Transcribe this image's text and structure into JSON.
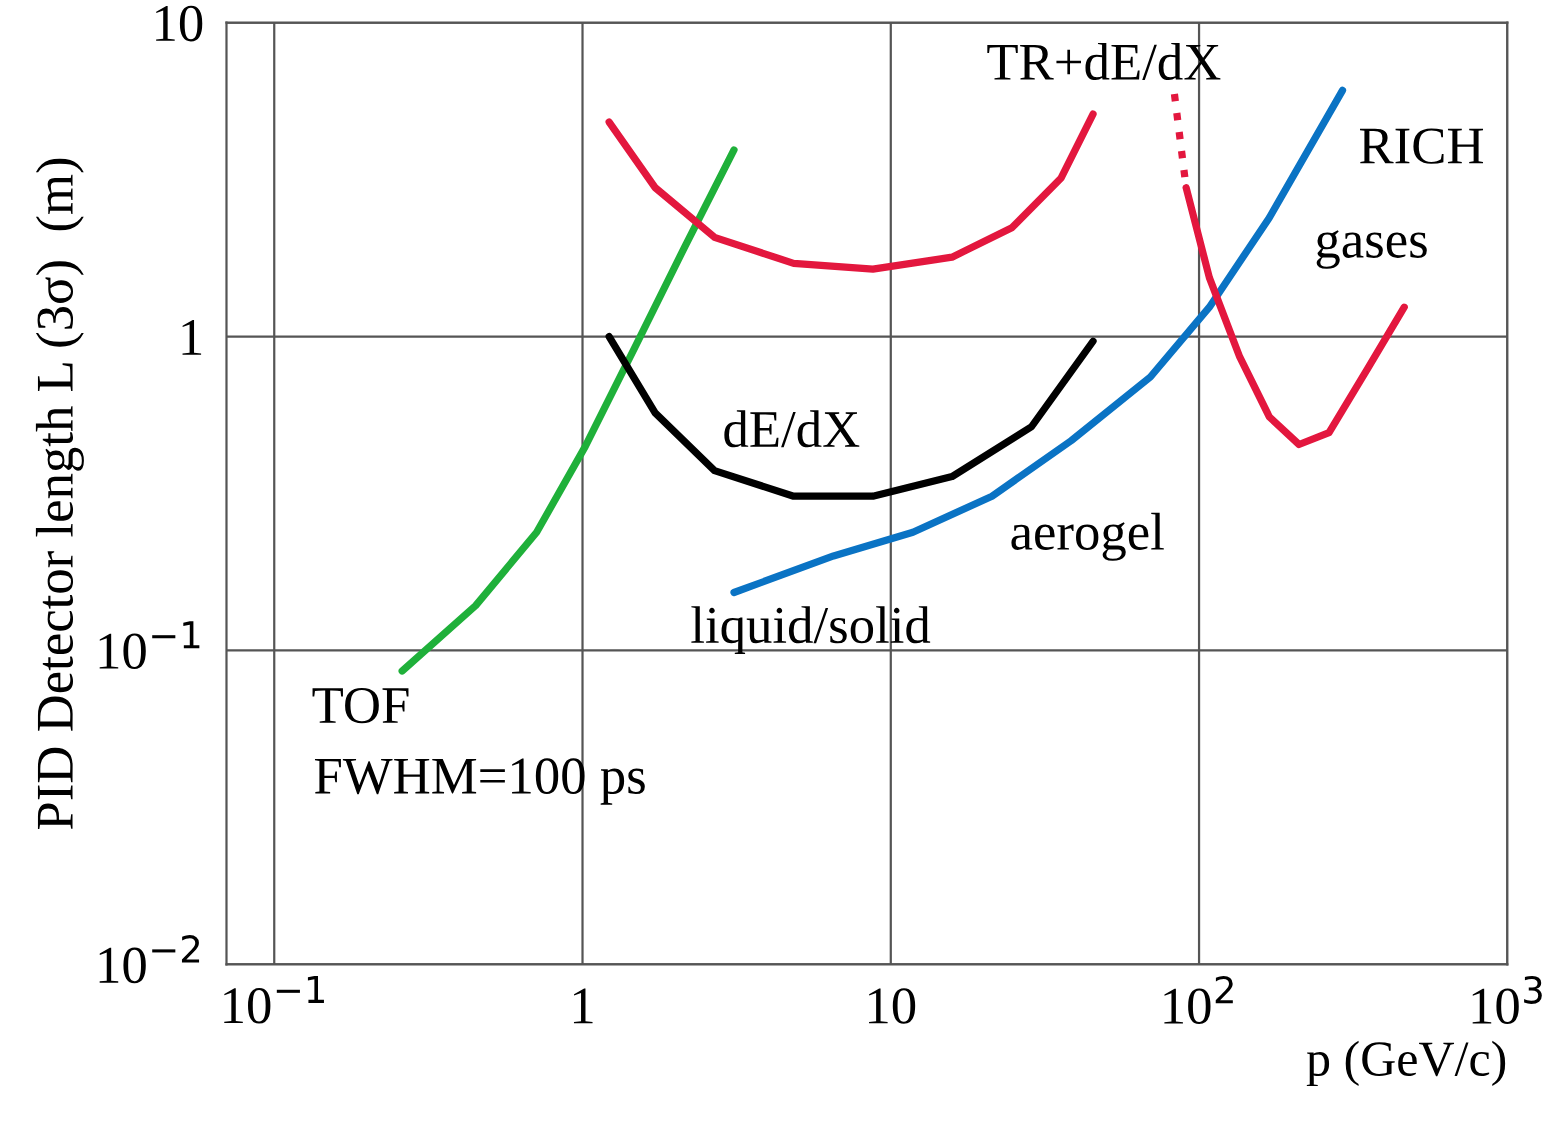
{
  "chart_data": {
    "type": "line",
    "xlabel": "p (GeV/c)",
    "ylabel": "PID Detector length L (3σ)  (m)",
    "log": "xy",
    "grid": true,
    "marker": "none",
    "xlim": [
      0.07,
      1000
    ],
    "ylim": [
      0.01,
      10
    ],
    "xticks": [
      {
        "value": 0.1,
        "label": "10$^{−1}$"
      },
      1,
      10,
      {
        "value": 100,
        "label": "10$^{2}$"
      },
      {
        "value": 1000,
        "label": "10$^{3}$"
      }
    ],
    "yticks": [
      {
        "value": 0.01,
        "label": "10$^{−2}$"
      },
      {
        "value": 0.1,
        "label": "10$^{−1}$"
      },
      1,
      10
    ],
    "series": [
      {
        "color": "#1fb03a",
        "line_style": "solid",
        "x": [
          0.26,
          0.45,
          0.71,
          1.02,
          1.48,
          2.14,
          3.1
        ],
        "values": [
          0.086,
          0.139,
          0.238,
          0.446,
          0.925,
          1.92,
          3.93
        ]
      },
      {
        "color": "#e3173e",
        "line_style": "solid",
        "x": [
          1.22,
          1.72,
          2.68,
          4.84,
          8.75,
          15.8,
          24.7,
          35.7,
          45.3
        ],
        "values": [
          4.82,
          2.98,
          2.07,
          1.71,
          1.64,
          1.79,
          2.22,
          3.2,
          5.11
        ]
      },
      {
        "color": "#000000",
        "line_style": "solid",
        "x": [
          1.22,
          1.72,
          2.68,
          4.84,
          8.75,
          15.8,
          28.6,
          45.3
        ],
        "values": [
          1.0,
          0.571,
          0.374,
          0.31,
          0.31,
          0.358,
          0.516,
          0.966
        ]
      },
      {
        "color": "#0a73c4",
        "line_style": "solid",
        "x": [
          3.1,
          6.52,
          11.8,
          21.3,
          38.5,
          69.5,
          108,
          169,
          292
        ],
        "values": [
          0.153,
          0.2,
          0.238,
          0.31,
          0.466,
          0.743,
          1.24,
          2.39,
          6.08
        ]
      },
      {
        "color": "#e3173e",
        "line_style": "dotted",
        "x": [
          83.2,
          90.8
        ],
        "values": [
          5.92,
          2.98
        ]
      },
      {
        "color": "#e3173e",
        "line_style": "solid",
        "x": [
          90.8,
          108,
          135.5,
          169,
          211,
          264,
          355,
          463
        ],
        "values": [
          2.98,
          1.54,
          0.861,
          0.555,
          0.453,
          0.494,
          0.8,
          1.24
        ]
      }
    ],
    "annotations": [
      "TR+dE/dX",
      "RICH",
      "gases",
      "dE/dX",
      "aerogel",
      "liquid/solid",
      "TOF",
      "FWHM=100 ps"
    ]
  }
}
